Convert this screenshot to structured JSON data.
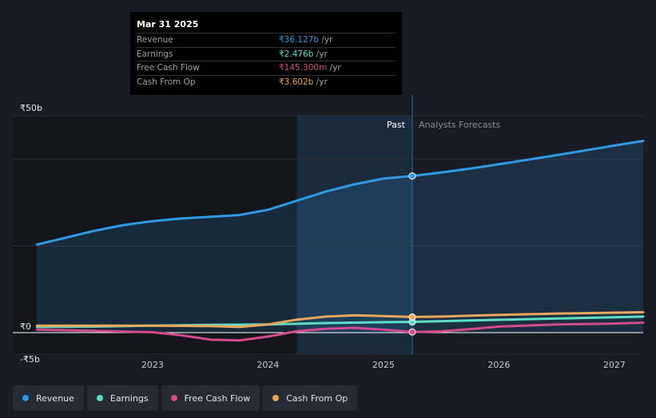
{
  "colors": {
    "revenue": "#2f9ae4",
    "earnings": "#5ddcc6",
    "fcf": "#d54a8c",
    "cfo": "#e8a75a"
  },
  "tooltip": {
    "date": "Mar 31 2025",
    "rows": [
      {
        "label": "Revenue",
        "value": "₹36.127b",
        "unit": " /yr",
        "color": "#2f9ae4"
      },
      {
        "label": "Earnings",
        "value": "₹2.476b",
        "unit": " /yr",
        "color": "#5ddcc6"
      },
      {
        "label": "Free Cash Flow",
        "value": "₹145.300m",
        "unit": " /yr",
        "color": "#d54a8c"
      },
      {
        "label": "Cash From Op",
        "value": "₹3.602b",
        "unit": " /yr",
        "color": "#e8a75a"
      }
    ]
  },
  "legend": {
    "items": [
      {
        "label": "Revenue",
        "color": "#2f9ae4"
      },
      {
        "label": "Earnings",
        "color": "#5ddcc6"
      },
      {
        "label": "Free Cash Flow",
        "color": "#d54a8c"
      },
      {
        "label": "Cash From Op",
        "color": "#e8a75a"
      }
    ]
  },
  "chart_data": {
    "type": "line",
    "title": "",
    "xlabel": "",
    "ylabel": "",
    "ylim": [
      -5,
      50
    ],
    "y_ticks": [
      {
        "value": 50,
        "label": "₹50b"
      },
      {
        "value": 0,
        "label": "₹0"
      },
      {
        "value": -5,
        "label": "-₹5b"
      }
    ],
    "x_ticks": [
      {
        "value": 2023,
        "label": "2023"
      },
      {
        "value": 2024,
        "label": "2024"
      },
      {
        "value": 2025,
        "label": "2025"
      },
      {
        "value": 2026,
        "label": "2026"
      },
      {
        "value": 2027,
        "label": "2027"
      }
    ],
    "xlim": [
      2021.79,
      2027.25
    ],
    "highlight_start": 2024.25,
    "past_end": 2025.25,
    "past_label": "Past",
    "forecast_label": "Analysts Forecasts",
    "series": [
      {
        "name": "Revenue",
        "key": "revenue",
        "points": [
          [
            2022.0,
            20.3
          ],
          [
            2022.25,
            21.9
          ],
          [
            2022.5,
            23.5
          ],
          [
            2022.75,
            24.8
          ],
          [
            2023.0,
            25.7
          ],
          [
            2023.25,
            26.3
          ],
          [
            2023.5,
            26.7
          ],
          [
            2023.75,
            27.1
          ],
          [
            2024.0,
            28.3
          ],
          [
            2024.25,
            30.4
          ],
          [
            2024.5,
            32.5
          ],
          [
            2024.75,
            34.2
          ],
          [
            2025.0,
            35.5
          ],
          [
            2025.25,
            36.1
          ],
          [
            2025.5,
            36.9
          ],
          [
            2025.75,
            37.8
          ],
          [
            2026.0,
            38.8
          ],
          [
            2026.5,
            40.9
          ],
          [
            2027.0,
            43.1
          ],
          [
            2027.25,
            44.2
          ]
        ]
      },
      {
        "name": "Earnings",
        "key": "earnings",
        "points": [
          [
            2022.0,
            1.3
          ],
          [
            2022.5,
            1.4
          ],
          [
            2023.0,
            1.6
          ],
          [
            2023.5,
            1.8
          ],
          [
            2024.0,
            1.9
          ],
          [
            2024.5,
            2.2
          ],
          [
            2025.0,
            2.4
          ],
          [
            2025.25,
            2.48
          ],
          [
            2025.75,
            2.8
          ],
          [
            2026.25,
            3.1
          ],
          [
            2026.75,
            3.4
          ],
          [
            2027.25,
            3.7
          ]
        ]
      },
      {
        "name": "Free Cash Flow",
        "key": "fcf",
        "points": [
          [
            2022.0,
            0.7
          ],
          [
            2022.5,
            0.4
          ],
          [
            2023.0,
            0.1
          ],
          [
            2023.25,
            -0.6
          ],
          [
            2023.5,
            -1.6
          ],
          [
            2023.75,
            -1.8
          ],
          [
            2024.0,
            -0.9
          ],
          [
            2024.25,
            0.3
          ],
          [
            2024.5,
            0.9
          ],
          [
            2024.75,
            1.1
          ],
          [
            2025.0,
            0.7
          ],
          [
            2025.25,
            0.15
          ],
          [
            2025.5,
            0.3
          ],
          [
            2025.75,
            0.8
          ],
          [
            2026.0,
            1.4
          ],
          [
            2026.5,
            1.9
          ],
          [
            2027.0,
            2.1
          ],
          [
            2027.25,
            2.3
          ]
        ]
      },
      {
        "name": "Cash From Op",
        "key": "cfo",
        "points": [
          [
            2022.0,
            1.6
          ],
          [
            2022.5,
            1.6
          ],
          [
            2023.0,
            1.6
          ],
          [
            2023.5,
            1.5
          ],
          [
            2023.75,
            1.3
          ],
          [
            2024.0,
            1.9
          ],
          [
            2024.25,
            3.0
          ],
          [
            2024.5,
            3.7
          ],
          [
            2024.75,
            4.0
          ],
          [
            2025.0,
            3.8
          ],
          [
            2025.25,
            3.6
          ],
          [
            2025.5,
            3.7
          ],
          [
            2025.75,
            3.9
          ],
          [
            2026.0,
            4.1
          ],
          [
            2026.5,
            4.4
          ],
          [
            2027.0,
            4.6
          ],
          [
            2027.25,
            4.7
          ]
        ]
      }
    ]
  }
}
